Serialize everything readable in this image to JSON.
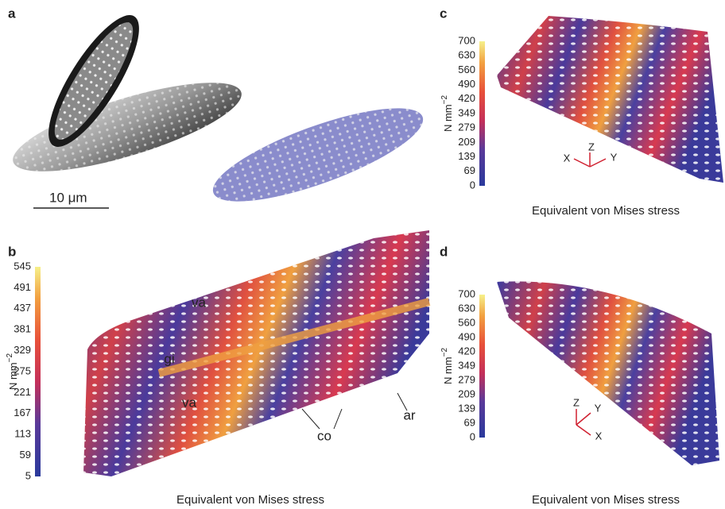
{
  "panels": [
    {
      "label": "a",
      "scale_bar": "10 μm"
    },
    {
      "label": "b",
      "unit": "N mm",
      "unit_exponent": "−2",
      "colorbar_ticks": [
        545,
        491,
        437,
        381,
        329,
        275,
        221,
        167,
        113,
        59,
        5
      ],
      "annotations": [
        "va",
        "gi",
        "va",
        "co",
        "ar"
      ],
      "caption": "Equivalent von Mises stress"
    },
    {
      "label": "c",
      "unit": "N mm",
      "unit_exponent": "−2",
      "colorbar_ticks": [
        700,
        630,
        560,
        490,
        420,
        349,
        279,
        209,
        139,
        69,
        0
      ],
      "axes": [
        "X",
        "Z",
        "Y"
      ],
      "caption": "Equivalent von Mises stress"
    },
    {
      "label": "d",
      "unit": "N mm",
      "unit_exponent": "−2",
      "colorbar_ticks": [
        700,
        630,
        560,
        490,
        420,
        349,
        279,
        209,
        139,
        69,
        0
      ],
      "axes": [
        "Z",
        "Y",
        "X"
      ],
      "caption": "Equivalent von Mises stress"
    }
  ]
}
